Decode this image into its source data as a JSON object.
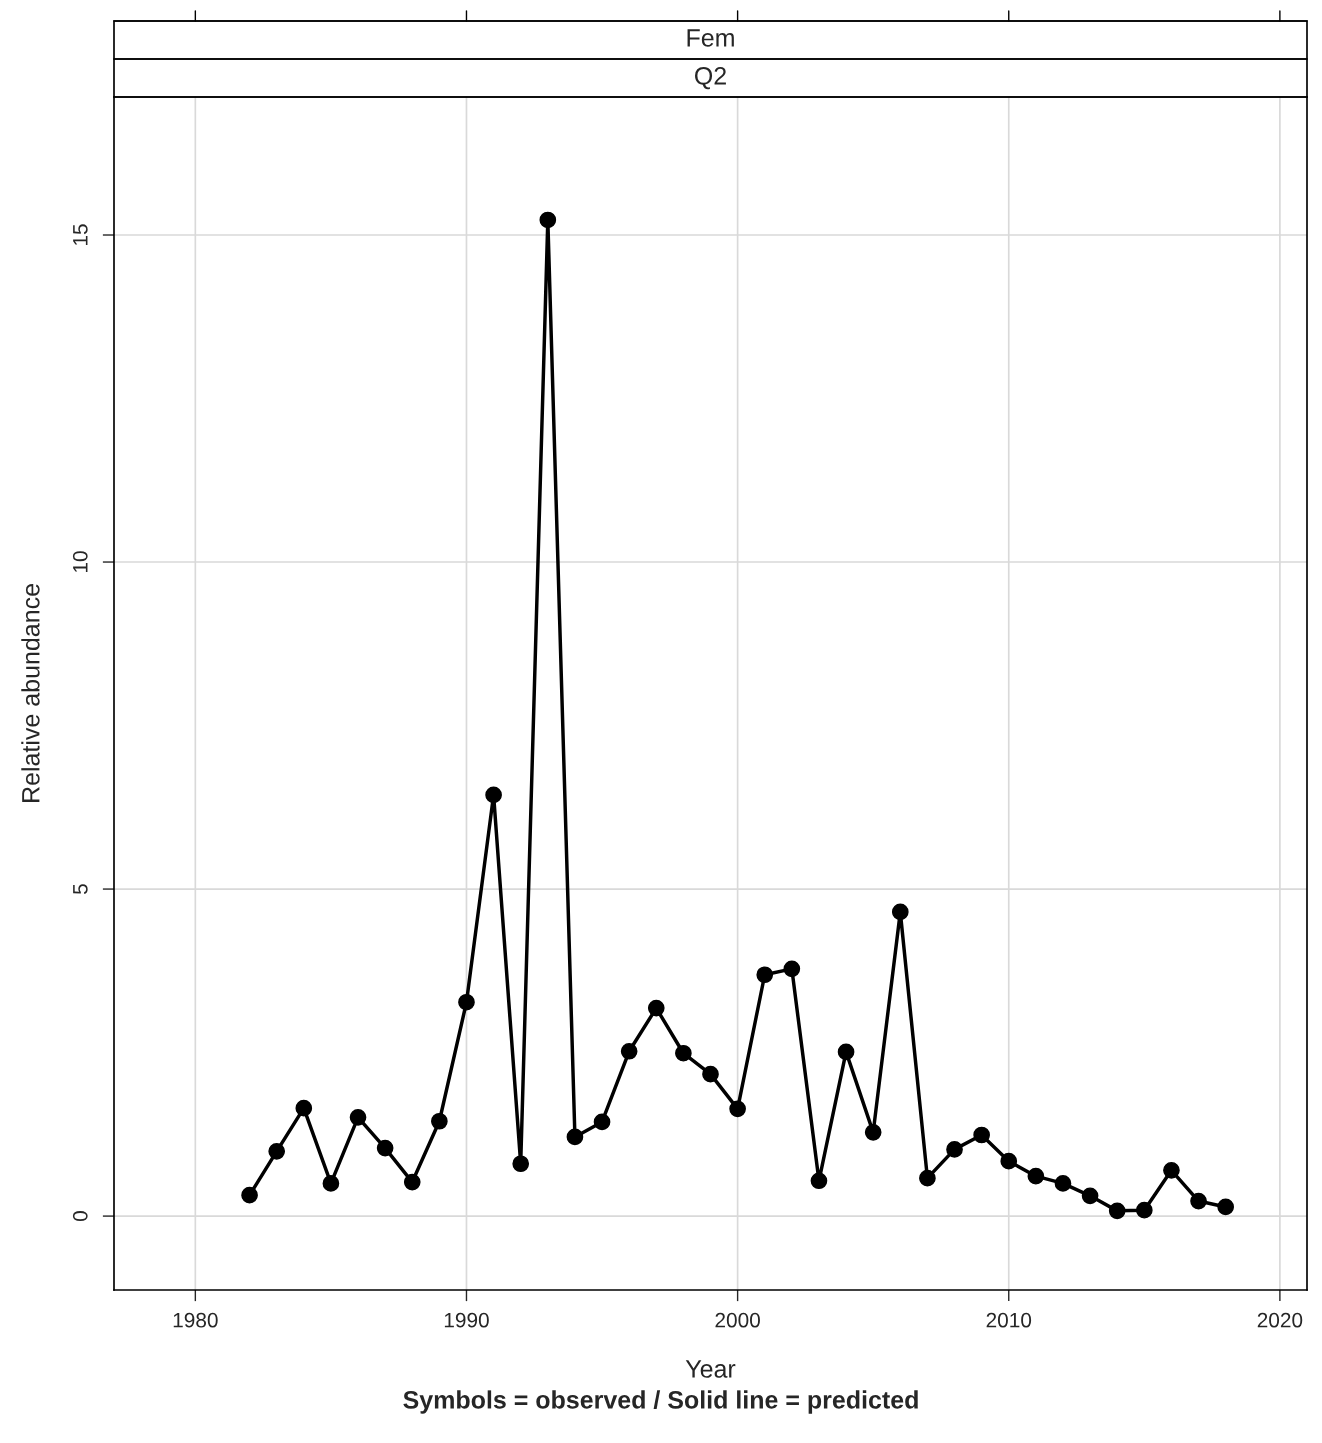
{
  "chart_data": {
    "type": "line",
    "xlabel": "Year",
    "ylabel": "Relative abundance",
    "annotations": [
      "Q2",
      "Fem",
      "Symbols = observed / Solid line = predicted"
    ],
    "x": [
      1982,
      1983,
      1984,
      1985,
      1986,
      1987,
      1988,
      1989,
      1990,
      1991,
      1992,
      1993,
      1994,
      1995,
      1996,
      1997,
      1998,
      1999,
      2000,
      2001,
      2002,
      2003,
      2004,
      2005,
      2006,
      2007,
      2008,
      2009,
      2010,
      2011,
      2012,
      2013,
      2014,
      2015,
      2016,
      2017,
      2018
    ],
    "series": [
      {
        "color": "#000000",
        "values": [
          0.32,
          0.99,
          1.65,
          0.5,
          1.51,
          1.04,
          0.52,
          1.45,
          3.27,
          6.44,
          0.8,
          15.23,
          1.21,
          1.44,
          2.52,
          3.18,
          2.49,
          2.17,
          1.64,
          3.69,
          3.78,
          0.54,
          2.51,
          1.28,
          4.65,
          0.58,
          1.02,
          1.24,
          0.84,
          0.61,
          0.5,
          0.31,
          0.08,
          0.09,
          0.7,
          0.23,
          0.14
        ]
      }
    ],
    "xlim": [
      1977,
      2021
    ],
    "ylim": [
      -1.13,
      17.11
    ],
    "xticks": [
      1980,
      1990,
      2000,
      2010,
      2020
    ],
    "yticks": [
      0,
      5,
      10,
      15
    ],
    "grid": true,
    "marker": "circle",
    "line_style": "solid",
    "legend": false
  }
}
